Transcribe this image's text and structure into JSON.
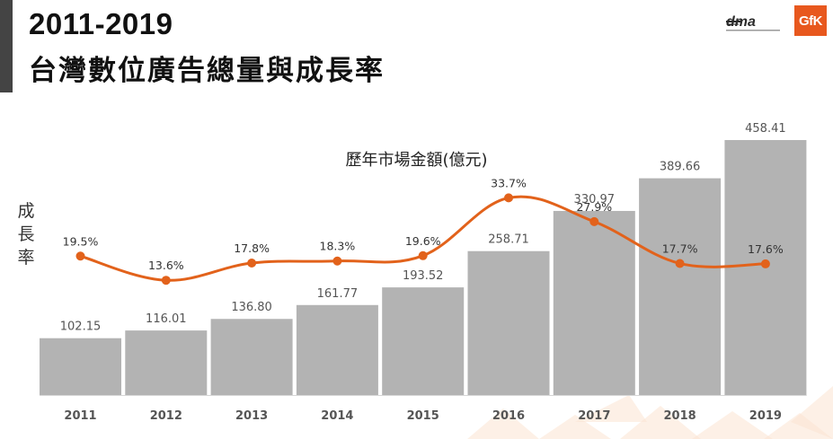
{
  "header": {
    "title_line1": "2011-2019",
    "title_line2": "台灣數位廣告總量與成長率"
  },
  "logos": {
    "dma_name": "dma-logo",
    "gfk_text": "GfK"
  },
  "chart_data": {
    "type": "bar",
    "title": "歷年市場金額(億元)",
    "ylabel": "成長率",
    "categories": [
      "2011",
      "2012",
      "2013",
      "2014",
      "2015",
      "2016",
      "2017",
      "2018",
      "2019"
    ],
    "series": [
      {
        "type": "bar",
        "values": [
          102.15,
          116.01,
          136.8,
          161.77,
          193.52,
          258.71,
          330.97,
          389.66,
          458.41
        ],
        "labels": [
          "102.15",
          "116.01",
          "136.80",
          "161.77",
          "193.52",
          "258.71",
          "330.97",
          "389.66",
          "458.41"
        ],
        "color": "#b3b3b3"
      },
      {
        "type": "line",
        "values": [
          19.5,
          13.6,
          17.8,
          18.3,
          19.6,
          33.7,
          27.9,
          17.7,
          17.6
        ],
        "labels": [
          "19.5%",
          "13.6%",
          "17.8%",
          "18.3%",
          "19.6%",
          "33.7%",
          "27.9%",
          "17.7%",
          "17.6%"
        ],
        "color": "#e2621b"
      }
    ],
    "bar_ylim": [
      0,
      500
    ],
    "line_ylim": [
      10,
      35
    ],
    "grid": false,
    "legend": "none"
  }
}
